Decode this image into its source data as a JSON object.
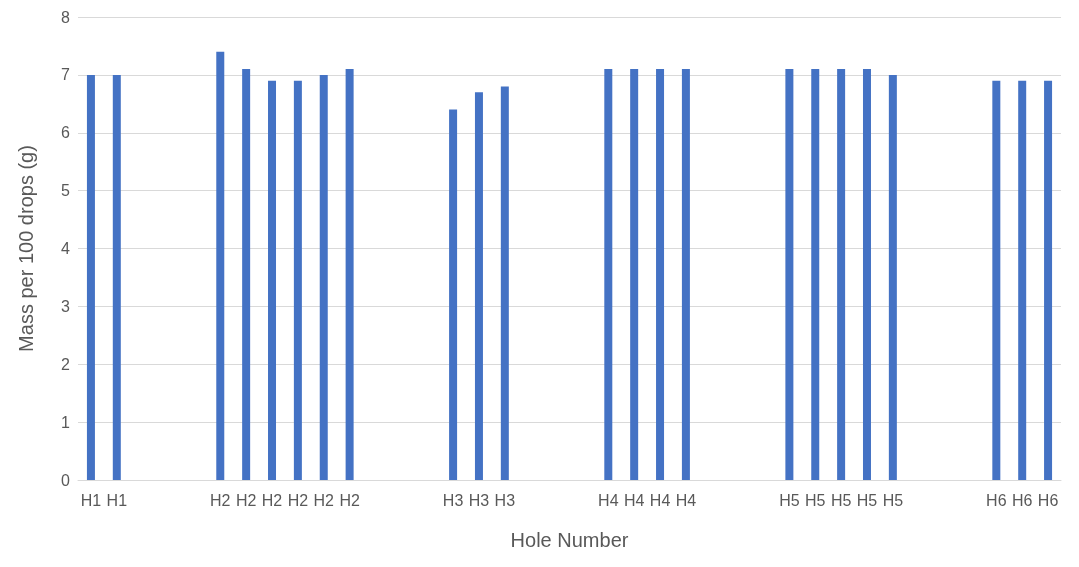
{
  "chart_data": {
    "type": "bar",
    "xlabel": "Hole Number",
    "ylabel": "Mass per 100 drops (g)",
    "categories": [
      "H1",
      "H1",
      null,
      null,
      null,
      "H2",
      "H2",
      "H2",
      "H2",
      "H2",
      "H2",
      null,
      null,
      null,
      "H3",
      "H3",
      "H3",
      null,
      null,
      null,
      "H4",
      "H4",
      "H4",
      "H4",
      null,
      null,
      null,
      "H5",
      "H5",
      "H5",
      "H5",
      "H5",
      null,
      null,
      null,
      "H6",
      "H6",
      "H6"
    ],
    "values": [
      7.0,
      7.0,
      null,
      null,
      null,
      7.4,
      7.1,
      6.9,
      6.9,
      7.0,
      7.1,
      null,
      null,
      null,
      6.4,
      6.7,
      6.8,
      null,
      null,
      null,
      7.1,
      7.1,
      7.1,
      7.1,
      null,
      null,
      null,
      7.1,
      7.1,
      7.1,
      7.1,
      7.0,
      null,
      null,
      null,
      6.9,
      6.9,
      6.9
    ],
    "color": "#4472c4",
    "ylim": [
      0,
      8
    ],
    "yticks": [
      0,
      1,
      2,
      3,
      4,
      5,
      6,
      7,
      8
    ],
    "grid": "y"
  }
}
